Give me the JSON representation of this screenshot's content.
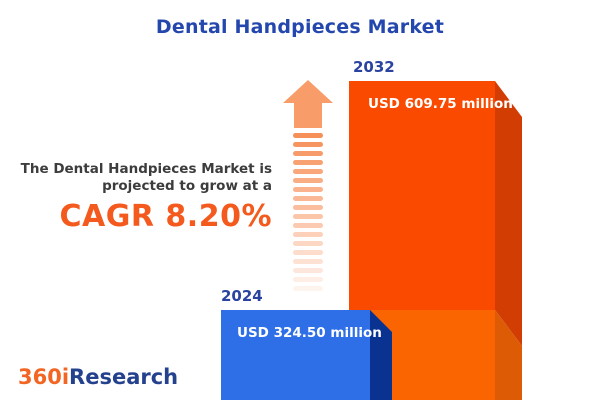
{
  "title": "Dental Handpieces Market",
  "tagline": {
    "line1": "The Dental Handpieces Market is",
    "line2": "projected to grow at a",
    "cagr": "CAGR 8.20%"
  },
  "logo": {
    "part1": "360i",
    "part2": "Research"
  },
  "icons": {
    "growth_arrow": "striped-up-arrow"
  },
  "chart_data": {
    "type": "bar",
    "title": "Dental Handpieces Market",
    "categories": [
      "2024",
      "2032"
    ],
    "values": [
      324.5,
      609.75
    ],
    "value_labels": [
      "USD 324.50 million",
      "USD 609.75 million"
    ],
    "unit": "USD million",
    "cagr_percent": 8.2,
    "legend": "none",
    "grid": false,
    "series_colors": [
      "#2E6FE8",
      "#FA4A00"
    ]
  },
  "colors": {
    "title_blue": "#2447AE",
    "year_label_blue": "#2A43A0",
    "body_text": "#3C3C3C",
    "cagr_orange": "#F45A1D",
    "bar_2024_front": "#2E6FE8",
    "bar_2024_side": "#0A3391",
    "bar_2032_front_top": "#FA4A00",
    "bar_2032_front_bottom": "#FB6501",
    "bar_2032_side_top": "#D23D04",
    "bar_2032_side_bottom": "#DD5B05",
    "arrow_head": "#F89C69",
    "arrow_stripe": "#F78F58",
    "logo_orange": "#F26522",
    "logo_blue": "#24418E",
    "background": "#FFFFFF"
  }
}
